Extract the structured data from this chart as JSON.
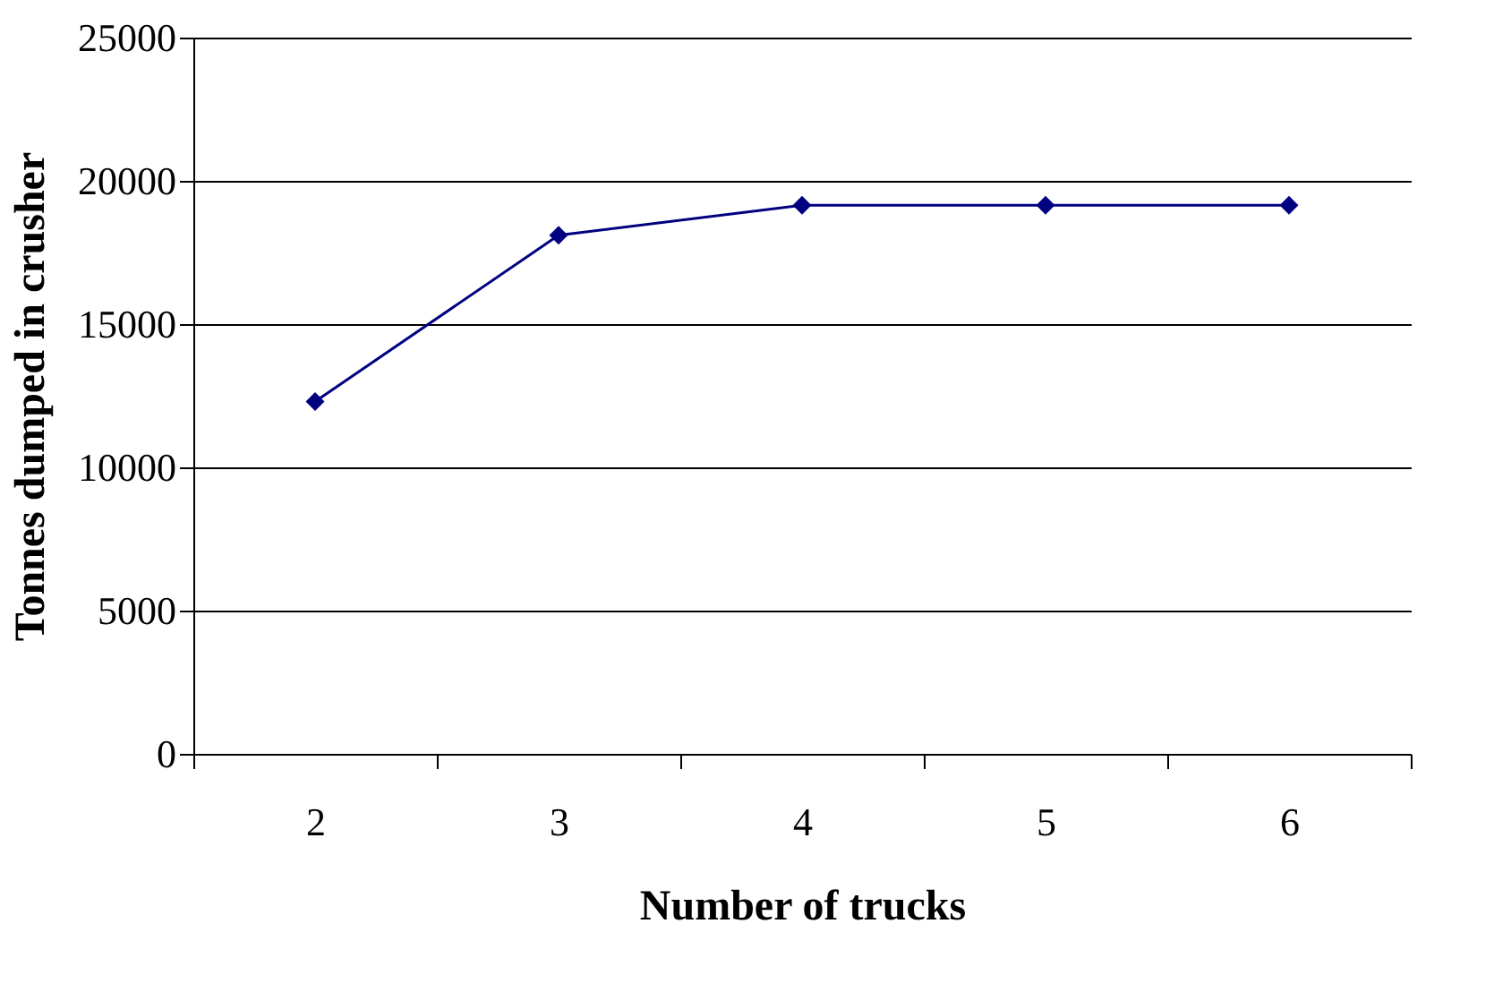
{
  "chart_data": {
    "type": "line",
    "xlabel": "Number of trucks",
    "ylabel": "Tonnes dumped in crusher",
    "categories": [
      "2",
      "3",
      "4",
      "5",
      "6"
    ],
    "series": [
      {
        "color": "#000080",
        "values": [
          12300,
          18100,
          19150,
          19150,
          19150
        ]
      }
    ],
    "ylim": [
      0,
      25000
    ],
    "yticks": [
      0,
      5000,
      10000,
      15000,
      20000,
      25000
    ],
    "grid": "y",
    "marker": "diamond",
    "line_style": "solid",
    "legend": false
  }
}
